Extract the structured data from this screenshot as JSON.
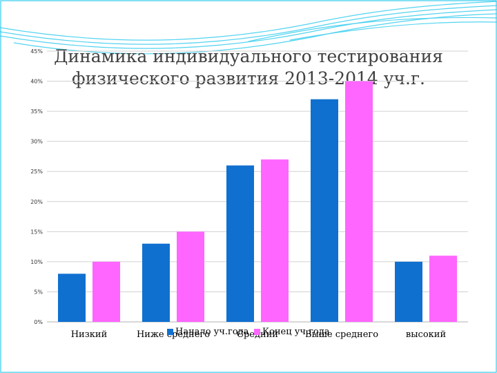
{
  "title_lines": [
    "Динамика индивидуального тестирования",
    "физического развития  2013-2014 уч.г."
  ],
  "colors": {
    "frame": "#33ccee",
    "grid": "#d0d0d0"
  },
  "chart_data": {
    "type": "bar",
    "title": "Динамика индивидуального тестирования физического развития  2013-2014 уч.г.",
    "categories": [
      "Низкий",
      "Ниже среднего",
      "Средний",
      "Выше среднего",
      "высокий"
    ],
    "series": [
      {
        "name": "Начало уч.года",
        "color": "#1070d0",
        "values": [
          8,
          13,
          26,
          37,
          10
        ]
      },
      {
        "name": "Конец уч.года",
        "color": "#ff66ff",
        "values": [
          10,
          15,
          27,
          40,
          11
        ]
      }
    ],
    "ylim": [
      0,
      45
    ],
    "yticks": [
      0,
      5,
      10,
      15,
      20,
      25,
      30,
      35,
      40,
      45
    ],
    "ytick_labels": [
      "0%",
      "5%",
      "10%",
      "15%",
      "20%",
      "25%",
      "30%",
      "35%",
      "40%",
      "45%"
    ],
    "xlabel": "",
    "ylabel": "",
    "grid": true,
    "legend_position": "bottom"
  }
}
